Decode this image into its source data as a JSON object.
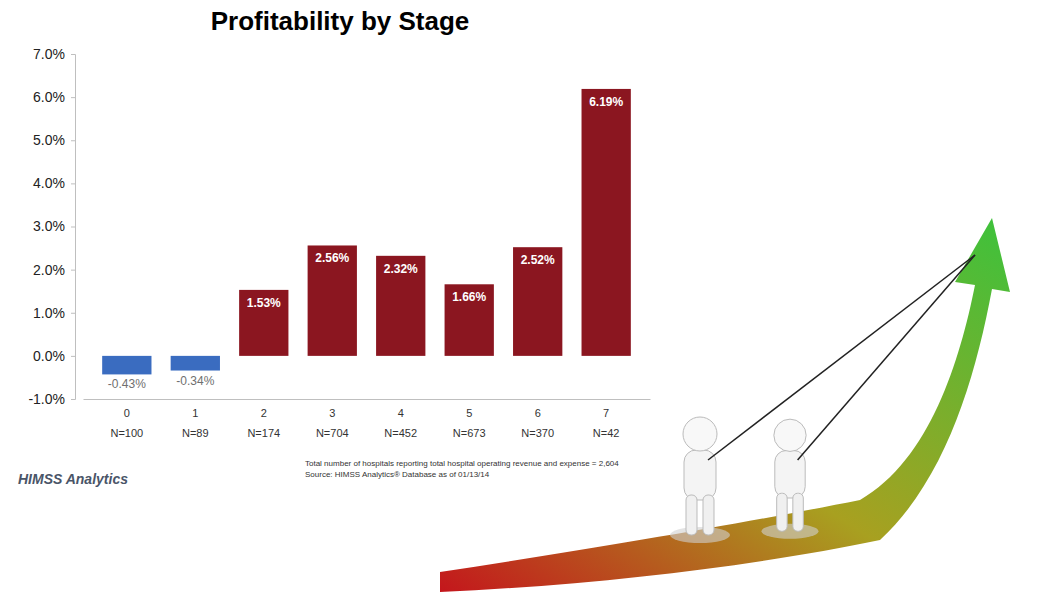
{
  "chart_data": {
    "type": "bar",
    "title": "Profitability by Stage",
    "categories": [
      "0",
      "1",
      "2",
      "3",
      "4",
      "5",
      "6",
      "7"
    ],
    "n_labels": [
      "N=100",
      "N=89",
      "N=174",
      "N=704",
      "N=452",
      "N=673",
      "N=370",
      "N=42"
    ],
    "values": [
      -0.43,
      -0.34,
      1.53,
      2.56,
      2.32,
      1.66,
      2.52,
      6.19
    ],
    "value_labels": [
      "-0.43%",
      "-0.34%",
      "1.53%",
      "2.56%",
      "2.32%",
      "1.66%",
      "2.52%",
      "6.19%"
    ],
    "colors": [
      "#3a6cc0",
      "#3a6cc0",
      "#8b1620",
      "#8b1620",
      "#8b1620",
      "#8b1620",
      "#8b1620",
      "#8b1620"
    ],
    "ylim": [
      -1,
      7
    ],
    "yticks": [
      {
        "value": -1,
        "label": "-1.0%"
      },
      {
        "value": 0,
        "label": "0.0%"
      },
      {
        "value": 1,
        "label": "1.0%"
      },
      {
        "value": 2,
        "label": "2.0%"
      },
      {
        "value": 3,
        "label": "3.0%"
      },
      {
        "value": 4,
        "label": "4.0%"
      },
      {
        "value": 5,
        "label": "5.0%"
      },
      {
        "value": 6,
        "label": "6.0%"
      },
      {
        "value": 7,
        "label": "7.0%"
      }
    ],
    "grid": false,
    "data_labels": true,
    "footnote": [
      "Total number of hospitals reporting total hospital operating revenue and expense = 2,604",
      "Source: HIMSS Analytics® Database as of 01/13/14"
    ],
    "logo": "HIMSS Analytics"
  }
}
